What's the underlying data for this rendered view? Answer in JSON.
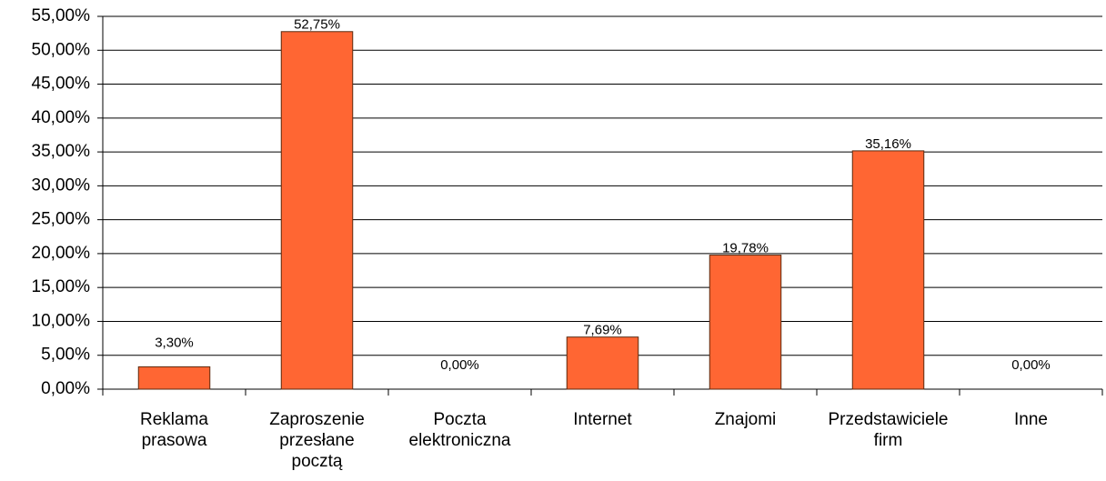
{
  "chart_data": {
    "type": "bar",
    "categories": [
      "Reklama\nprasowa",
      "Zaproszenie\nprzesłane\npocztą",
      "Poczta\nelektroniczna",
      "Internet",
      "Znajomi",
      "Przedstawiciele\nfirm",
      "Inne"
    ],
    "values": [
      3.3,
      52.75,
      0.0,
      7.69,
      19.78,
      35.16,
      0.0
    ],
    "value_labels": [
      "3,30%",
      "52,75%",
      "0,00%",
      "7,69%",
      "19,78%",
      "35,16%",
      "0,00%"
    ],
    "color": "#ff6633",
    "ylim": [
      0,
      55
    ],
    "yticks": [
      {
        "value": 0,
        "label": "0,00%"
      },
      {
        "value": 5,
        "label": "5,00%"
      },
      {
        "value": 10,
        "label": "10,00%"
      },
      {
        "value": 15,
        "label": "15,00%"
      },
      {
        "value": 20,
        "label": "20,00%"
      },
      {
        "value": 25,
        "label": "25,00%"
      },
      {
        "value": 30,
        "label": "30,00%"
      },
      {
        "value": 35,
        "label": "35,00%"
      },
      {
        "value": 40,
        "label": "40,00%"
      },
      {
        "value": 45,
        "label": "45,00%"
      },
      {
        "value": 50,
        "label": "50,00%"
      },
      {
        "value": 55,
        "label": "55,00%"
      }
    ],
    "grid": true
  }
}
